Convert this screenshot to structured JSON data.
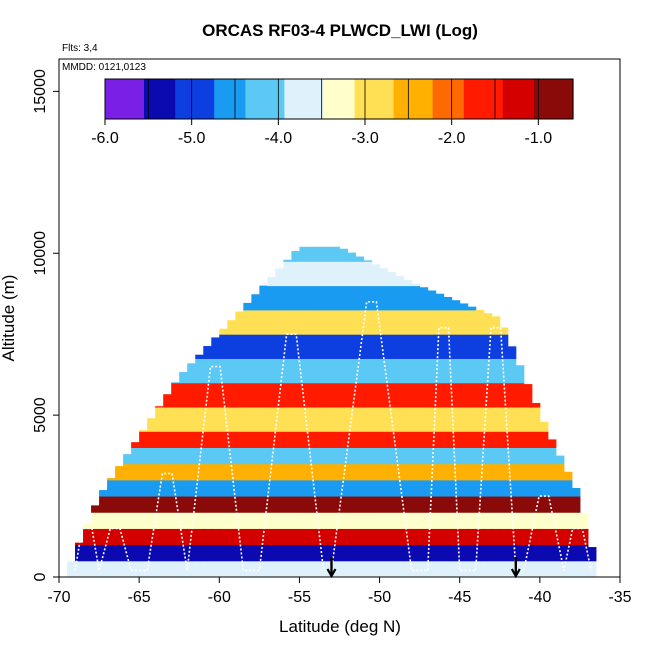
{
  "chart_data": {
    "type": "heatmap",
    "title": "ORCAS RF03-4 PLWCD_LWI (Log)",
    "annotations": {
      "flights": "Flts: 3,4",
      "dates": "MMDD: 0121,0123"
    },
    "xlabel": "Latitude (deg N)",
    "ylabel": "Altitude (m)",
    "xlim": [
      -70,
      -35
    ],
    "ylim": [
      0,
      16000
    ],
    "x_ticks": [
      -70,
      -65,
      -60,
      -55,
      -50,
      -45,
      -40,
      -35
    ],
    "x_tick_labels": [
      "-70",
      "-65",
      "-60",
      "-55",
      "-50",
      "-45",
      "-40",
      "-35"
    ],
    "y_ticks": [
      0,
      5000,
      10000,
      15000
    ],
    "y_tick_labels": [
      "0",
      "5000",
      "10000",
      "15000"
    ],
    "colorbar": {
      "range": [
        -6.0,
        -0.6
      ],
      "ticks": [
        -6.0,
        -5.0,
        -4.0,
        -3.0,
        -2.0,
        -1.0
      ],
      "tick_labels": [
        "-6.0",
        "-5.0",
        "-4.0",
        "-3.0",
        "-2.0",
        "-1.0"
      ],
      "colors": [
        "#7a1fe6",
        "#0a0ab0",
        "#0d3ee0",
        "#1a9bf2",
        "#5cc9f5",
        "#dff2fb",
        "#ffffcc",
        "#ffe055",
        "#ffb000",
        "#ff6a00",
        "#ff1a00",
        "#d40000",
        "#8a0a0a"
      ]
    },
    "envelope": {
      "lat": [
        -69.5,
        -67.5,
        -62.5,
        -55,
        -52.5,
        -47.5,
        -42.5,
        -39.5,
        -37.5,
        -36.5
      ],
      "alt": [
        200,
        2500,
        6200,
        10200,
        10200,
        9000,
        8000,
        4500,
        2500,
        400
      ]
    },
    "layers": [
      {
        "alt": 300,
        "value": -3.8
      },
      {
        "alt": 800,
        "value": -5.2
      },
      {
        "alt": 1200,
        "value": -1.2
      },
      {
        "alt": 1700,
        "value": -3.5
      },
      {
        "alt": 2200,
        "value": -1.0
      },
      {
        "alt": 2700,
        "value": -4.5
      },
      {
        "alt": 3200,
        "value": -2.5
      },
      {
        "alt": 3700,
        "value": -4.2
      },
      {
        "alt": 4200,
        "value": -1.8
      },
      {
        "alt": 4800,
        "value": -3.0
      },
      {
        "alt": 5500,
        "value": -1.5
      },
      {
        "alt": 6300,
        "value": -4.0
      },
      {
        "alt": 7100,
        "value": -5.0
      },
      {
        "alt": 7900,
        "value": -2.8
      },
      {
        "alt": 8700,
        "value": -4.6
      },
      {
        "alt": 9500,
        "value": -3.6
      },
      {
        "alt": 10000,
        "value": -4.3
      }
    ],
    "flight_markers_lat": [
      -53.0,
      -41.5
    ]
  }
}
